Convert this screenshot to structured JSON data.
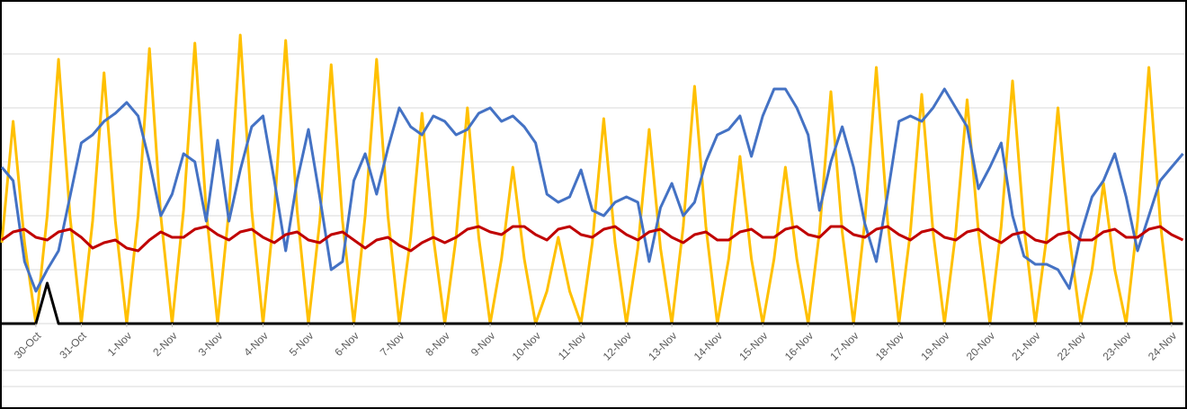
{
  "chart_data": {
    "type": "line",
    "x": [
      -0.75,
      -0.5,
      -0.25,
      0,
      0.25,
      0.5,
      0.75,
      1,
      1.25,
      1.5,
      1.75,
      2,
      2.25,
      2.5,
      2.75,
      3,
      3.25,
      3.5,
      3.75,
      4,
      4.25,
      4.5,
      4.75,
      5,
      5.25,
      5.5,
      5.75,
      6,
      6.25,
      6.5,
      6.75,
      7,
      7.25,
      7.5,
      7.75,
      8,
      8.25,
      8.5,
      8.75,
      9,
      9.25,
      9.5,
      9.75,
      10,
      10.25,
      10.5,
      10.75,
      11,
      11.25,
      11.5,
      11.75,
      12,
      12.25,
      12.5,
      12.75,
      13,
      13.25,
      13.5,
      13.75,
      14,
      14.25,
      14.5,
      14.75,
      15,
      15.25,
      15.5,
      15.75,
      16,
      16.25,
      16.5,
      16.75,
      17,
      17.25,
      17.5,
      17.75,
      18,
      18.25,
      18.5,
      18.75,
      19,
      19.25,
      19.5,
      19.75,
      20,
      20.25,
      20.5,
      20.75,
      21,
      21.25,
      21.5,
      21.75,
      22,
      22.25,
      22.5,
      22.75,
      23,
      23.25,
      23.5,
      23.75,
      24,
      24.25,
      24.5,
      24.75,
      25,
      25.25
    ],
    "series": [
      {
        "color": "#ffc000",
        "values": [
          1.5,
          3.75,
          1.5,
          0,
          2.0,
          4.9,
          2.0,
          0,
          1.9,
          4.65,
          1.9,
          0,
          2.0,
          5.1,
          2.0,
          0,
          2.1,
          5.2,
          2.1,
          0,
          2.1,
          5.35,
          2.1,
          0,
          2.1,
          5.25,
          2.1,
          0,
          1.9,
          4.8,
          1.9,
          0,
          2.0,
          4.9,
          2.0,
          0,
          1.6,
          3.9,
          1.6,
          0,
          1.6,
          4.0,
          1.6,
          0,
          1.2,
          2.9,
          1.2,
          0,
          0.6,
          1.6,
          0.6,
          0,
          1.5,
          3.8,
          1.5,
          0,
          1.4,
          3.6,
          1.4,
          0,
          1.8,
          4.4,
          1.8,
          0,
          1.2,
          3.1,
          1.2,
          0,
          1.2,
          2.9,
          1.2,
          0,
          1.7,
          4.3,
          1.7,
          0,
          1.9,
          4.75,
          1.9,
          0,
          1.7,
          4.25,
          1.7,
          0,
          1.7,
          4.15,
          1.7,
          0,
          1.8,
          4.5,
          1.8,
          0,
          1.6,
          4.0,
          1.6,
          0,
          1.0,
          2.6,
          1.0,
          0,
          1.9,
          4.75,
          1.9,
          0,
          0
        ]
      },
      {
        "color": "#4472c4",
        "values": [
          2.9,
          2.65,
          1.15,
          0.6,
          1.0,
          1.35,
          2.35,
          3.35,
          3.5,
          3.75,
          3.9,
          4.1,
          3.85,
          3.0,
          2.0,
          2.4,
          3.15,
          3.0,
          1.9,
          3.4,
          1.9,
          2.85,
          3.65,
          3.85,
          2.65,
          1.35,
          2.65,
          3.6,
          2.35,
          1.0,
          1.15,
          2.65,
          3.15,
          2.4,
          3.25,
          4.0,
          3.65,
          3.5,
          3.85,
          3.75,
          3.5,
          3.6,
          3.9,
          4.0,
          3.75,
          3.85,
          3.65,
          3.35,
          2.4,
          2.25,
          2.35,
          2.85,
          2.1,
          2.0,
          2.25,
          2.35,
          2.25,
          1.15,
          2.15,
          2.6,
          2.0,
          2.25,
          3.0,
          3.5,
          3.6,
          3.85,
          3.1,
          3.85,
          4.35,
          4.35,
          4.0,
          3.5,
          2.1,
          3.0,
          3.65,
          2.9,
          1.85,
          1.15,
          2.4,
          3.75,
          3.85,
          3.75,
          4.0,
          4.35,
          4.0,
          3.65,
          2.5,
          2.9,
          3.35,
          2.0,
          1.25,
          1.1,
          1.1,
          1.0,
          0.65,
          1.65,
          2.35,
          2.65,
          3.15,
          2.35,
          1.35,
          2.0,
          2.65,
          2.9,
          3.15
        ]
      },
      {
        "color": "#c00000",
        "values": [
          1.55,
          1.7,
          1.75,
          1.6,
          1.55,
          1.7,
          1.75,
          1.6,
          1.4,
          1.5,
          1.55,
          1.4,
          1.35,
          1.55,
          1.7,
          1.6,
          1.6,
          1.75,
          1.8,
          1.65,
          1.55,
          1.7,
          1.75,
          1.6,
          1.5,
          1.65,
          1.7,
          1.55,
          1.5,
          1.65,
          1.7,
          1.55,
          1.4,
          1.55,
          1.6,
          1.45,
          1.35,
          1.5,
          1.6,
          1.5,
          1.6,
          1.75,
          1.8,
          1.7,
          1.65,
          1.8,
          1.8,
          1.65,
          1.55,
          1.75,
          1.8,
          1.65,
          1.6,
          1.75,
          1.8,
          1.65,
          1.55,
          1.7,
          1.75,
          1.6,
          1.5,
          1.65,
          1.7,
          1.55,
          1.55,
          1.7,
          1.75,
          1.6,
          1.6,
          1.75,
          1.8,
          1.65,
          1.6,
          1.8,
          1.8,
          1.65,
          1.6,
          1.75,
          1.8,
          1.65,
          1.55,
          1.7,
          1.75,
          1.6,
          1.55,
          1.7,
          1.75,
          1.6,
          1.5,
          1.65,
          1.7,
          1.55,
          1.5,
          1.65,
          1.7,
          1.55,
          1.55,
          1.7,
          1.75,
          1.6,
          1.6,
          1.75,
          1.8,
          1.65,
          1.55
        ]
      },
      {
        "color": "#000000",
        "values": [
          0,
          0,
          0,
          0,
          0.75,
          0,
          0,
          0,
          0,
          0,
          0,
          0,
          0,
          0,
          0,
          0,
          0,
          0,
          0,
          0,
          0,
          0,
          0,
          0,
          0,
          0,
          0,
          0,
          0,
          0,
          0,
          0,
          0,
          0,
          0,
          0,
          0,
          0,
          0,
          0,
          0,
          0,
          0,
          0,
          0,
          0,
          0,
          0,
          0,
          0,
          0,
          0,
          0,
          0,
          0,
          0,
          0,
          0,
          0,
          0,
          0,
          0,
          0,
          0,
          0,
          0,
          0,
          0,
          0,
          0,
          0,
          0,
          0,
          0,
          0,
          0,
          0,
          0,
          0,
          0,
          0,
          0,
          0,
          0,
          0,
          0,
          0,
          0,
          0,
          0,
          0,
          0,
          0,
          0,
          0,
          0,
          0,
          0,
          0,
          0,
          0,
          0,
          0,
          0,
          0
        ]
      }
    ],
    "xlim": [
      -0.75,
      25.3
    ],
    "xticks": [
      {
        "value": 0,
        "label": "30-Oct"
      },
      {
        "value": 1,
        "label": "31-Oct"
      },
      {
        "value": 2,
        "label": "1-Nov"
      },
      {
        "value": 3,
        "label": "2-Nov"
      },
      {
        "value": 4,
        "label": "3-Nov"
      },
      {
        "value": 5,
        "label": "4-Nov"
      },
      {
        "value": 6,
        "label": "5-Nov"
      },
      {
        "value": 7,
        "label": "6-Nov"
      },
      {
        "value": 8,
        "label": "7-Nov"
      },
      {
        "value": 9,
        "label": "8-Nov"
      },
      {
        "value": 10,
        "label": "9-Nov"
      },
      {
        "value": 11,
        "label": "10-Nov"
      },
      {
        "value": 12,
        "label": "11-Nov"
      },
      {
        "value": 13,
        "label": "12-Nov"
      },
      {
        "value": 14,
        "label": "13-Nov"
      },
      {
        "value": 15,
        "label": "14-Nov"
      },
      {
        "value": 16,
        "label": "15-Nov"
      },
      {
        "value": 17,
        "label": "16-Nov"
      },
      {
        "value": 18,
        "label": "17-Nov"
      },
      {
        "value": 19,
        "label": "18-Nov"
      },
      {
        "value": 20,
        "label": "19-Nov"
      },
      {
        "value": 21,
        "label": "20-Nov"
      },
      {
        "value": 22,
        "label": "21-Nov"
      },
      {
        "value": 23,
        "label": "22-Nov"
      },
      {
        "value": 24,
        "label": "23-Nov"
      },
      {
        "value": 25,
        "label": "24-Nov"
      }
    ],
    "ylim": [
      0,
      6
    ],
    "yticks": [
      0,
      1,
      2,
      3,
      4,
      5
    ],
    "ytick_labels": false,
    "grid": true
  }
}
